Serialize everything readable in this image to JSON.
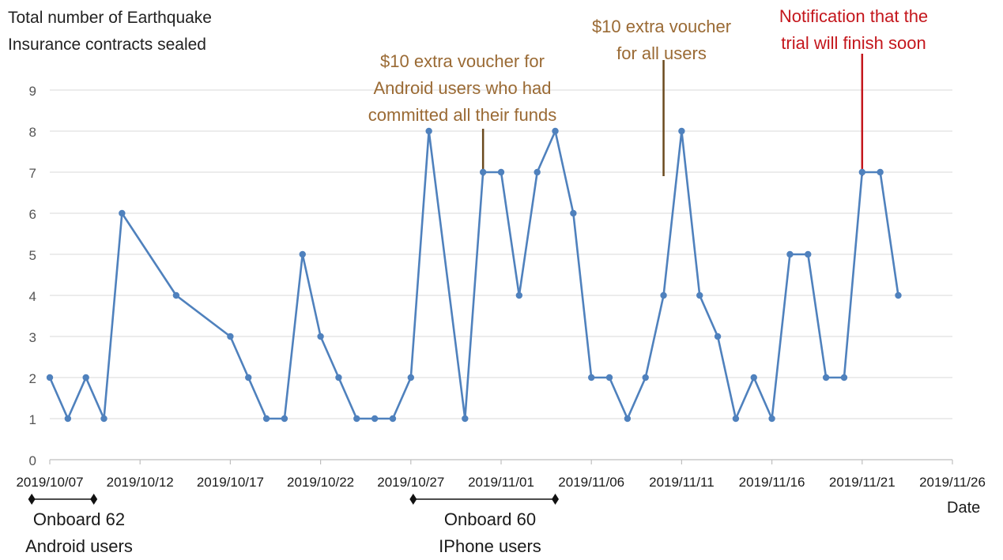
{
  "chart_data": {
    "type": "line",
    "ylabel": "Total number of Earthquake Insurance contracts sealed",
    "xlabel": "Date",
    "ylim": [
      0,
      9
    ],
    "yticks": [
      "0",
      "1",
      "2",
      "3",
      "4",
      "5",
      "6",
      "7",
      "8",
      "9"
    ],
    "xlim": [
      "2019/10/07",
      "2019/11/26"
    ],
    "xticks": [
      "2019/10/07",
      "2019/10/12",
      "2019/10/17",
      "2019/10/22",
      "2019/10/27",
      "2019/11/01",
      "2019/11/06",
      "2019/11/11",
      "2019/11/16",
      "2019/11/21",
      "2019/11/26"
    ],
    "grid": true,
    "line_color": "#4f81bd",
    "series": [
      {
        "points": [
          [
            "2019/10/07",
            2
          ],
          [
            "2019/10/08",
            1
          ],
          [
            "2019/10/09",
            2
          ],
          [
            "2019/10/10",
            1
          ],
          [
            "2019/10/11",
            6
          ],
          [
            "2019/10/14",
            4
          ],
          [
            "2019/10/17",
            3
          ],
          [
            "2019/10/18",
            2
          ],
          [
            "2019/10/19",
            1
          ],
          [
            "2019/10/20",
            1
          ],
          [
            "2019/10/21",
            5
          ],
          [
            "2019/10/22",
            3
          ],
          [
            "2019/10/23",
            2
          ],
          [
            "2019/10/24",
            1
          ],
          [
            "2019/10/25",
            1
          ],
          [
            "2019/10/26",
            1
          ],
          [
            "2019/10/27",
            2
          ],
          [
            "2019/10/28",
            8
          ],
          [
            "2019/10/30",
            1
          ],
          [
            "2019/10/31",
            7
          ],
          [
            "2019/11/01",
            7
          ],
          [
            "2019/11/02",
            4
          ],
          [
            "2019/11/03",
            7
          ],
          [
            "2019/11/04",
            8
          ],
          [
            "2019/11/05",
            6
          ],
          [
            "2019/11/06",
            2
          ],
          [
            "2019/11/07",
            2
          ],
          [
            "2019/11/08",
            1
          ],
          [
            "2019/11/09",
            2
          ],
          [
            "2019/11/10",
            4
          ],
          [
            "2019/11/11",
            8
          ],
          [
            "2019/11/12",
            4
          ],
          [
            "2019/11/13",
            3
          ],
          [
            "2019/11/14",
            1
          ],
          [
            "2019/11/15",
            2
          ],
          [
            "2019/11/16",
            1
          ],
          [
            "2019/11/17",
            5
          ],
          [
            "2019/11/18",
            5
          ],
          [
            "2019/11/19",
            2
          ],
          [
            "2019/11/20",
            2
          ],
          [
            "2019/11/21",
            7
          ],
          [
            "2019/11/22",
            7
          ],
          [
            "2019/11/23",
            4
          ]
        ]
      }
    ],
    "annotations": [
      {
        "text": "$10 extra voucher for Android users who had committed all their funds",
        "lines": [
          "$10 extra voucher for",
          "Android users who had",
          "committed all their funds"
        ],
        "date": "2019/10/31",
        "color": "#9a6a34"
      },
      {
        "text": "$10 extra voucher for all users",
        "lines": [
          "$10 extra voucher",
          "for all users"
        ],
        "date": "2019/11/10",
        "color": "#9a6a34"
      },
      {
        "text": "Notification that the trial will finish soon",
        "lines": [
          "Notification that the",
          "trial will finish soon"
        ],
        "date": "2019/11/21",
        "color": "#c4161c"
      }
    ],
    "ranges": [
      {
        "lines": [
          "Onboard 62",
          "Android users"
        ],
        "start": "2019/10/06",
        "end": "2019/10/09"
      },
      {
        "lines": [
          "Onboard 60",
          "IPhone users"
        ],
        "start": "2019/10/27",
        "end": "2019/11/04"
      }
    ]
  }
}
